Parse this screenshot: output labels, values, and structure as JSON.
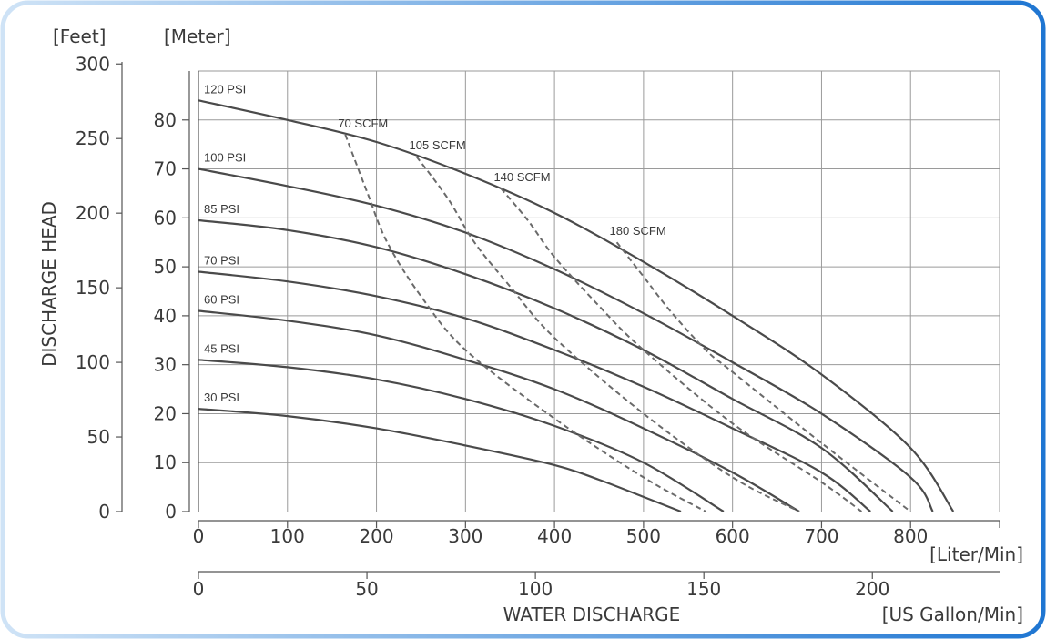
{
  "chart_data": {
    "type": "line",
    "title": "",
    "ylabel": "DISCHARGE HEAD",
    "xlabel": "WATER DISCHARGE",
    "x_unit_primary": "[Liter/Min]",
    "x_unit_secondary": "[US Gallon/Min]",
    "y_unit_feet": "[Feet]",
    "y_unit_meter": "[Meter]",
    "xlim": [
      0,
      900
    ],
    "ylim": [
      0,
      90
    ],
    "grid": true,
    "x_ticks_liter": [
      "0",
      "100",
      "200",
      "300",
      "400",
      "500",
      "600",
      "700",
      "800"
    ],
    "x_ticks_liter_values": [
      0,
      100,
      200,
      300,
      400,
      500,
      600,
      700,
      800
    ],
    "x_ticks_gallon": [
      "0",
      "50",
      "100",
      "150",
      "200"
    ],
    "x_ticks_gallon_values": [
      0,
      50,
      100,
      150,
      200
    ],
    "y_ticks_meter": [
      "0",
      "10",
      "20",
      "30",
      "40",
      "50",
      "60",
      "70",
      "80"
    ],
    "y_ticks_meter_values": [
      0,
      10,
      20,
      30,
      40,
      50,
      60,
      70,
      80
    ],
    "y_ticks_feet": [
      "0",
      "50",
      "100",
      "150",
      "200",
      "250",
      "300"
    ],
    "y_ticks_feet_values": [
      0,
      50,
      100,
      150,
      200,
      250,
      300
    ],
    "pressure_series": [
      {
        "name": "120 PSI",
        "x": [
          0,
          100,
          200,
          300,
          400,
          500,
          600,
          700,
          800,
          848
        ],
        "y": [
          84,
          80,
          75.5,
          69,
          61,
          51,
          40,
          28,
          13,
          0
        ]
      },
      {
        "name": "100 PSI",
        "x": [
          0,
          100,
          200,
          300,
          400,
          500,
          600,
          700,
          800,
          825
        ],
        "y": [
          70,
          66.5,
          62.5,
          57,
          49.5,
          40.5,
          30.5,
          20,
          7,
          0
        ]
      },
      {
        "name": "85 PSI",
        "x": [
          0,
          100,
          200,
          300,
          400,
          500,
          600,
          700,
          780
        ],
        "y": [
          59.5,
          57.5,
          54,
          48.5,
          41.5,
          33,
          23,
          13,
          0
        ]
      },
      {
        "name": "70 PSI",
        "x": [
          0,
          100,
          200,
          300,
          400,
          500,
          600,
          700,
          755
        ],
        "y": [
          49,
          47,
          44,
          39.5,
          33,
          25.5,
          17,
          8,
          0
        ]
      },
      {
        "name": "60 PSI",
        "x": [
          0,
          100,
          200,
          300,
          400,
          500,
          600,
          675
        ],
        "y": [
          41,
          39,
          36,
          31,
          25,
          17,
          8,
          0
        ]
      },
      {
        "name": "45 PSI",
        "x": [
          0,
          100,
          200,
          300,
          400,
          500,
          590
        ],
        "y": [
          31,
          29.5,
          27,
          23,
          17.5,
          10,
          0
        ]
      },
      {
        "name": "30 PSI",
        "x": [
          0,
          100,
          200,
          300,
          400,
          450,
          500,
          542
        ],
        "y": [
          21,
          19.5,
          17,
          13.5,
          9.5,
          6.5,
          3,
          0
        ]
      }
    ],
    "air_series": [
      {
        "name": "70 SCFM",
        "x": [
          165,
          190,
          212,
          250,
          300,
          400,
          500,
          570
        ],
        "y": [
          77,
          65,
          55,
          44,
          33,
          19,
          7,
          0
        ]
      },
      {
        "name": "105 SCFM",
        "x": [
          245,
          280,
          310,
          350,
          400,
          500,
          600,
          675
        ],
        "y": [
          72.5,
          64,
          55,
          46,
          35.5,
          20,
          7,
          0
        ]
      },
      {
        "name": "140 SCFM",
        "x": [
          340,
          370,
          400,
          450,
          500,
          600,
          700,
          745
        ],
        "y": [
          66,
          59.5,
          52,
          42,
          33,
          18,
          6,
          0
        ]
      },
      {
        "name": "180 SCFM",
        "x": [
          470,
          500,
          530,
          570,
          600,
          700,
          800
        ],
        "y": [
          55,
          48,
          41,
          33,
          28.5,
          14,
          0
        ]
      }
    ]
  },
  "colors": {
    "curve": "#4a4a4a",
    "dashed": "#6a6a6a",
    "grid": "#9a9a9a",
    "frame": "#2b7fd4"
  }
}
